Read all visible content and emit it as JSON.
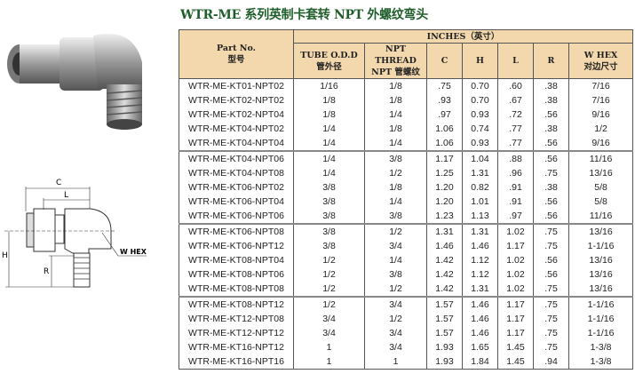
{
  "title": "WTR-ME 系列英制卡套转 NPT 外螺纹弯头",
  "diagram": {
    "c": "C",
    "l": "L",
    "h": "H",
    "r": "R",
    "whex": "W HEX"
  },
  "table": {
    "part_no": "Part No.",
    "part_no_cn": "型号",
    "inches": "INCHES（英寸）",
    "tube": "TUBE O.D.D",
    "tube_cn": "管外径",
    "npt": "NPT THREAD",
    "npt_cn": "NPT 管螺纹",
    "c": "C",
    "h": "H",
    "l": "L",
    "r": "R",
    "whex": "W HEX",
    "whex_cn": "对边尺寸",
    "rows": [
      [
        "WTR-ME-KT01-NPT02",
        "1/16",
        "1/8",
        ".75",
        "0.70",
        ".60",
        ".38",
        "7/16"
      ],
      [
        "WTR-ME-KT02-NPT02",
        "1/8",
        "1/8",
        ".93",
        "0.70",
        ".67",
        ".38",
        "7/16"
      ],
      [
        "WTR-ME-KT02-NPT04",
        "1/8",
        "1/4",
        ".97",
        "0.93",
        ".72",
        ".56",
        "9/16"
      ],
      [
        "WTR-ME-KT04-NPT02",
        "1/4",
        "1/8",
        "1.06",
        "0.74",
        ".77",
        ".38",
        "1/2"
      ],
      [
        "WTR-ME-KT04-NPT04",
        "1/4",
        "1/4",
        "1.06",
        "0.93",
        ".77",
        ".56",
        "9/16"
      ],
      [
        "WTR-ME-KT04-NPT06",
        "1/4",
        "3/8",
        "1.17",
        "1.04",
        ".88",
        ".56",
        "11/16"
      ],
      [
        "WTR-ME-KT04-NPT08",
        "1/4",
        "1/2",
        "1.25",
        "1.31",
        ".96",
        ".75",
        "13/16"
      ],
      [
        "WTR-ME-KT06-NPT02",
        "3/8",
        "1/8",
        "1.20",
        "0.82",
        ".91",
        ".38",
        "5/8"
      ],
      [
        "WTR-ME-KT06-NPT04",
        "3/8",
        "1/4",
        "1.20",
        "1.01",
        ".91",
        ".56",
        "5/8"
      ],
      [
        "WTR-ME-KT06-NPT06",
        "3/8",
        "3/8",
        "1.23",
        "1.13",
        ".97",
        ".56",
        "11/16"
      ],
      [
        "WTR-ME-KT06-NPT08",
        "3/8",
        "1/2",
        "1.31",
        "1.31",
        "1.02",
        ".75",
        "13/16"
      ],
      [
        "WTR-ME-KT06-NPT12",
        "3/8",
        "3/4",
        "1.46",
        "1.46",
        "1.17",
        ".75",
        "1-1/16"
      ],
      [
        "WTR-ME-KT08-NPT04",
        "1/2",
        "1/4",
        "1.42",
        "1.12",
        "1.02",
        ".56",
        "13/16"
      ],
      [
        "WTR-ME-KT08-NPT06",
        "1/2",
        "3/8",
        "1.42",
        "1.12",
        "1.02",
        ".56",
        "13/16"
      ],
      [
        "WTR-ME-KT08-NPT08",
        "1/2",
        "1/2",
        "1.42",
        "1.31",
        "1.02",
        ".75",
        "13/16"
      ],
      [
        "WTR-ME-KT08-NPT12",
        "1/2",
        "3/4",
        "1.57",
        "1.46",
        "1.17",
        ".75",
        "1-1/16"
      ],
      [
        "WTR-ME-KT12-NPT08",
        "3/4",
        "1/2",
        "1.57",
        "1.46",
        "1.17",
        ".75",
        "1-1/16"
      ],
      [
        "WTR-ME-KT12-NPT12",
        "3/4",
        "3/4",
        "1.57",
        "1.46",
        "1.17",
        ".75",
        "1-1/16"
      ],
      [
        "WTR-ME-KT16-NPT12",
        "1",
        "3/4",
        "1.93",
        "1.65",
        "1.45",
        ".75",
        "1-3/8"
      ],
      [
        "WTR-ME-KT16-NPT16",
        "1",
        "1",
        "1.93",
        "1.84",
        "1.45",
        ".94",
        "1-3/8"
      ]
    ]
  }
}
